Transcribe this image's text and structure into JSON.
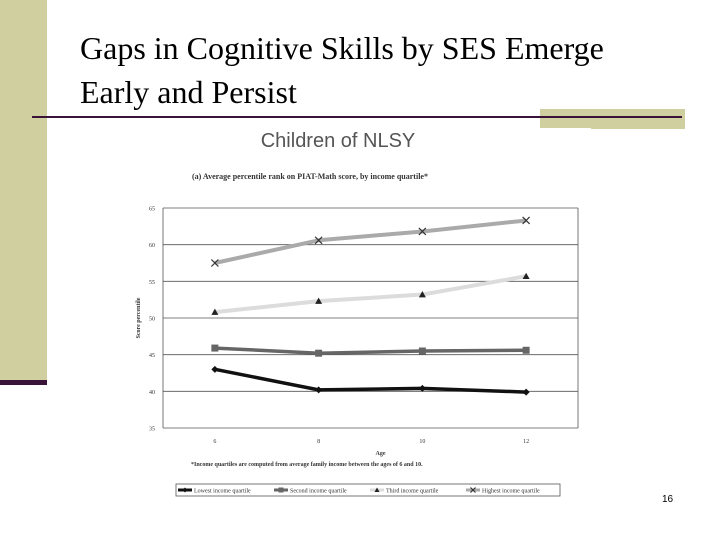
{
  "slide": {
    "title_line1": "Gaps in Cognitive Skills by SES Emerge",
    "title_line2": "Early and Persist",
    "page_number": "16",
    "accent_color": "#cfcf9f",
    "rule_color": "#3a1438"
  },
  "chart_data": {
    "type": "line",
    "title": "Children of NLSY",
    "subtitle": "(a) Average percentile rank on PIAT-Math score, by income quartile*",
    "xlabel": "Age",
    "ylabel": "Score percentile",
    "x": [
      6,
      8,
      10,
      12
    ],
    "ylim": [
      35,
      65
    ],
    "yticks": [
      35,
      40,
      45,
      50,
      55,
      60,
      65
    ],
    "grid": true,
    "footnote": "*Income quartiles are computed from average family income between the ages of 6 and 10.",
    "legend_position": "bottom",
    "series": [
      {
        "name": "Lowest income quartile",
        "values": [
          43.0,
          40.2,
          40.4,
          39.9
        ],
        "color": "#111111",
        "marker": "diamond"
      },
      {
        "name": "Second income quartile",
        "values": [
          45.9,
          45.2,
          45.5,
          45.6
        ],
        "color": "#666666",
        "marker": "square"
      },
      {
        "name": "Third income quartile",
        "values": [
          50.8,
          52.3,
          53.2,
          55.7
        ],
        "color": "#dcdcdc",
        "marker": "triangle"
      },
      {
        "name": "Highest income quartile",
        "values": [
          57.5,
          60.6,
          61.8,
          63.3
        ],
        "color": "#aaaaaa",
        "marker": "x"
      }
    ]
  }
}
